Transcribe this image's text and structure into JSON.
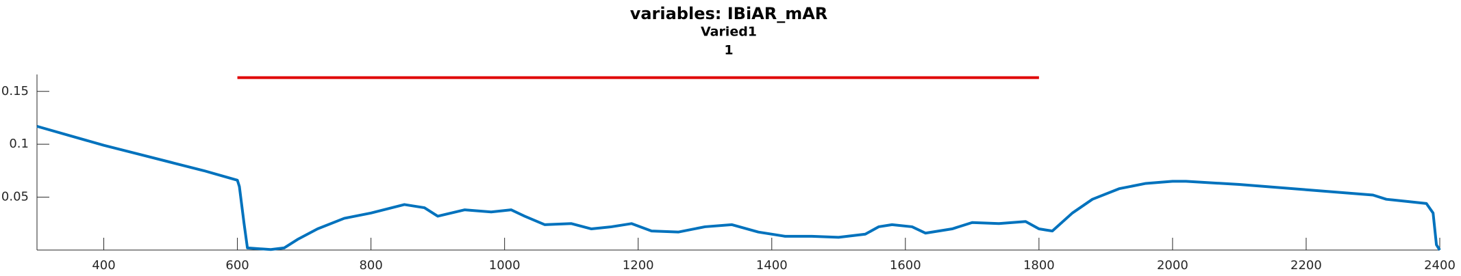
{
  "chart_data": {
    "type": "line",
    "title": "variables: IBiAR_mAR",
    "subtitle": "Varied1",
    "subtitle2": "1",
    "xlim": [
      300,
      2400
    ],
    "xticks": [
      400,
      600,
      800,
      1000,
      1200,
      1400,
      1600,
      1800,
      2000,
      2200,
      2400
    ],
    "ylim": [
      0,
      0.166
    ],
    "yticks": [
      0.05,
      0.1,
      0.15
    ],
    "series": [
      {
        "color": "#0072bd",
        "x": [
          300,
          350,
          400,
          450,
          500,
          550,
          600,
          603,
          610,
          615,
          650,
          670,
          690,
          720,
          760,
          800,
          850,
          880,
          900,
          940,
          980,
          1010,
          1030,
          1060,
          1100,
          1130,
          1160,
          1190,
          1220,
          1260,
          1300,
          1340,
          1380,
          1420,
          1460,
          1500,
          1540,
          1560,
          1580,
          1610,
          1630,
          1670,
          1700,
          1740,
          1780,
          1800,
          1820,
          1850,
          1880,
          1920,
          1960,
          2000,
          2020,
          2100,
          2200,
          2300,
          2320,
          2350,
          2380,
          2390,
          2395,
          2400
        ],
        "values": [
          0.117,
          0.108,
          0.099,
          0.091,
          0.083,
          0.075,
          0.066,
          0.06,
          0.025,
          0.002,
          0.0005,
          0.002,
          0.01,
          0.02,
          0.03,
          0.035,
          0.043,
          0.04,
          0.032,
          0.038,
          0.036,
          0.038,
          0.032,
          0.024,
          0.025,
          0.02,
          0.022,
          0.025,
          0.018,
          0.017,
          0.022,
          0.024,
          0.017,
          0.013,
          0.013,
          0.012,
          0.015,
          0.022,
          0.024,
          0.022,
          0.016,
          0.02,
          0.026,
          0.025,
          0.027,
          0.02,
          0.018,
          0.035,
          0.048,
          0.058,
          0.063,
          0.065,
          0.065,
          0.062,
          0.057,
          0.052,
          0.048,
          0.046,
          0.044,
          0.035,
          0.005,
          0.0
        ],
        "width": 4
      },
      {
        "color": "#e00000",
        "x": [
          600,
          1800
        ],
        "values": [
          0.163,
          0.163
        ],
        "width": 4
      }
    ]
  }
}
